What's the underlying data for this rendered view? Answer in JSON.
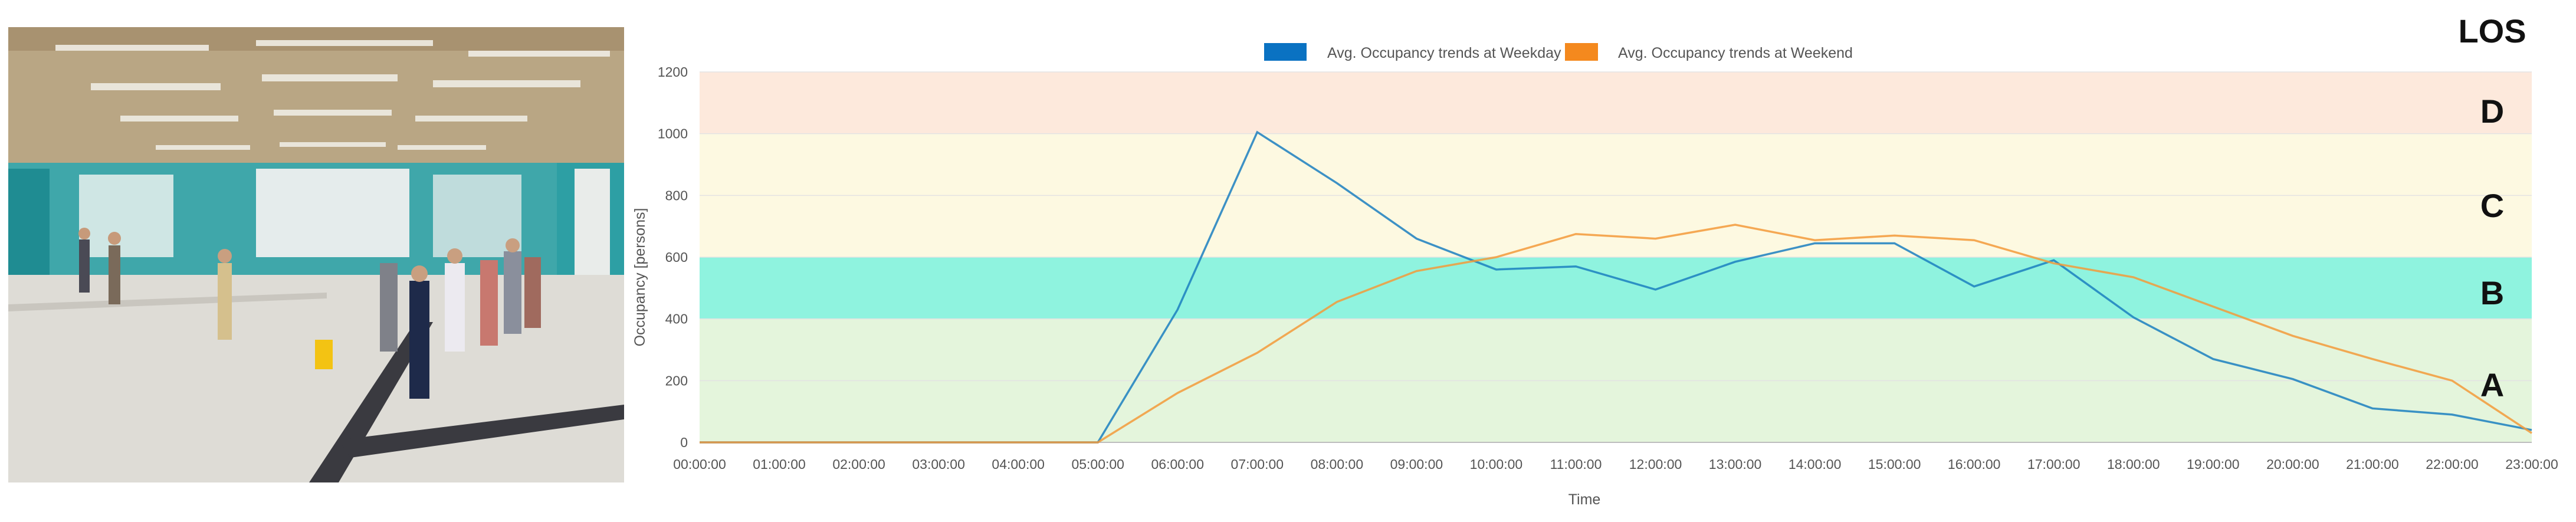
{
  "photo": {
    "description_icon": "station-concourse-photo",
    "colors": {
      "ceiling": "#b8a584",
      "wall_teal": "#2ba3a7",
      "floor": "#dedcd6",
      "floor_stripe": "#3c3c42"
    }
  },
  "los": {
    "heading": "LOS",
    "levels": [
      {
        "letter": "D",
        "from": 1000,
        "to": 1200,
        "color": "#fde9dc"
      },
      {
        "letter": "C",
        "from": 600,
        "to": 1000,
        "color": "#fdf9e1"
      },
      {
        "letter": "B",
        "from": 400,
        "to": 600,
        "color": "#8ff3df"
      },
      {
        "letter": "A",
        "from": 0,
        "to": 400,
        "color": "#e4f5dc"
      }
    ]
  },
  "chart_data": {
    "type": "line",
    "title": "",
    "xlabel": "Time",
    "ylabel": "Occupancy [persons]",
    "ylim": [
      0,
      1200
    ],
    "yticks": [
      0,
      200,
      400,
      600,
      800,
      1000,
      1200
    ],
    "grid": true,
    "legend_position": "top-center",
    "categories": [
      "00:00:00",
      "01:00:00",
      "02:00:00",
      "03:00:00",
      "04:00:00",
      "05:00:00",
      "06:00:00",
      "07:00:00",
      "08:00:00",
      "09:00:00",
      "10:00:00",
      "11:00:00",
      "12:00:00",
      "13:00:00",
      "14:00:00",
      "15:00:00",
      "16:00:00",
      "17:00:00",
      "18:00:00",
      "19:00:00",
      "20:00:00",
      "21:00:00",
      "22:00:00",
      "23:00:00"
    ],
    "series": [
      {
        "name": "Avg. Occupancy trends at Weekday",
        "color": "#1b7fbf",
        "legend_color": "#0a72c2",
        "values": [
          0,
          0,
          0,
          0,
          0,
          0,
          430,
          1005,
          840,
          660,
          560,
          570,
          495,
          585,
          645,
          645,
          505,
          590,
          405,
          270,
          205,
          110,
          90,
          40
        ]
      },
      {
        "name": "Avg. Occupancy trends at Weekend",
        "color": "#f39a3a",
        "legend_color": "#f4891e",
        "values": [
          0,
          0,
          0,
          0,
          0,
          0,
          160,
          290,
          455,
          555,
          600,
          675,
          660,
          705,
          655,
          670,
          655,
          580,
          535,
          440,
          345,
          270,
          200,
          30
        ]
      }
    ]
  }
}
